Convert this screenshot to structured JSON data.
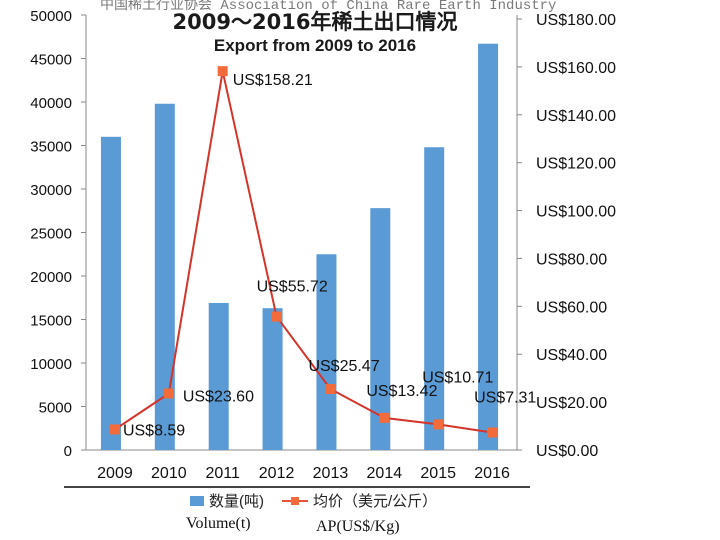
{
  "watermark": "中国稀土行业协会 Association of China Rare Earth Industry",
  "title_cn": "2009～2016年稀土出口情况",
  "title_en": "Export from 2009 to 2016",
  "legend": {
    "volume_label": "数量(吨)",
    "price_label": "均价（美元/公斤）",
    "volume_sub": "Volume(t)",
    "price_sub": "AP(US$/Kg)"
  },
  "colors": {
    "bar": "#5b9bd5",
    "line": "#d4342a",
    "marker": "#f26b3a"
  },
  "chart_data": {
    "type": "bar",
    "categories": [
      "2009",
      "2010",
      "2011",
      "2012",
      "2013",
      "2014",
      "2015",
      "2016"
    ],
    "series": [
      {
        "name": "数量(吨)",
        "type": "bar",
        "axis": "left",
        "values": [
          36000,
          39800,
          16900,
          16300,
          22500,
          27800,
          34800,
          46700
        ]
      },
      {
        "name": "均价（美元/公斤）",
        "type": "line",
        "axis": "right",
        "values": [
          8.59,
          23.6,
          158.21,
          55.72,
          25.47,
          13.42,
          10.71,
          7.31
        ]
      }
    ],
    "data_labels": [
      "US$8.59",
      "US$23.60",
      "US$158.21",
      "US$55.72",
      "US$25.47",
      "US$13.42",
      "US$10.71",
      "US$7.31"
    ],
    "y_left": {
      "ylim": [
        0,
        50000
      ],
      "ticks": [
        "0",
        "5000",
        "10000",
        "15000",
        "20000",
        "25000",
        "30000",
        "35000",
        "40000",
        "45000",
        "50000"
      ]
    },
    "y_right": {
      "ylim": [
        0,
        180
      ],
      "ticks": [
        "US$0.00",
        "US$20.00",
        "US$40.00",
        "US$60.00",
        "US$80.00",
        "US$100.00",
        "US$120.00",
        "US$140.00",
        "US$160.00",
        "US$180.00"
      ]
    },
    "grid": false,
    "legend_position": "bottom"
  }
}
